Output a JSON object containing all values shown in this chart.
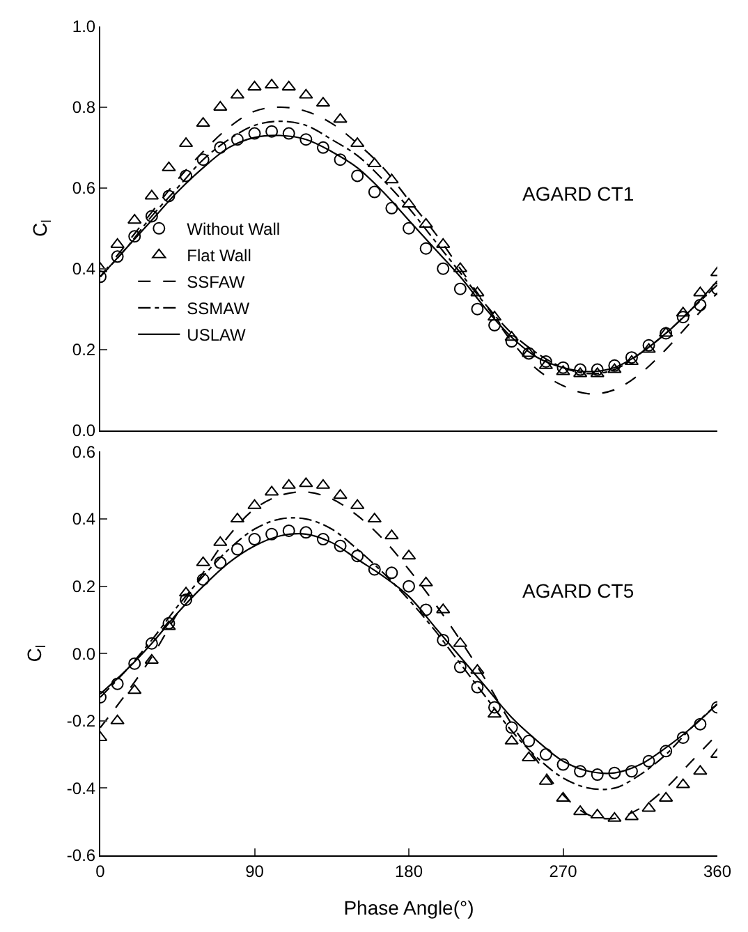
{
  "chart_data": [
    {
      "type": "line",
      "ylabel": "C$_{l}$",
      "annotations": [
        "AGARD CT1"
      ],
      "xlim": [
        0,
        360
      ],
      "ylim": [
        0,
        1.0
      ],
      "yticks": [
        {
          "value": 0,
          "label": "0.0"
        },
        0.2,
        0.4,
        0.6,
        0.8,
        {
          "value": 1,
          "label": "1.0"
        }
      ],
      "tick_labels": "y",
      "legend": "left",
      "series": [
        {
          "name": "Without Wall",
          "type": "scatter",
          "marker": "circle",
          "color": "#000000",
          "x": [
            0,
            10,
            20,
            30,
            40,
            50,
            60,
            70,
            80,
            90,
            100,
            110,
            120,
            130,
            140,
            150,
            160,
            170,
            180,
            190,
            200,
            210,
            220,
            230,
            240,
            250,
            260,
            270,
            280,
            290,
            300,
            310,
            320,
            330,
            340,
            350,
            360
          ],
          "values": [
            0.38,
            0.43,
            0.48,
            0.53,
            0.58,
            0.63,
            0.67,
            0.7,
            0.72,
            0.735,
            0.74,
            0.735,
            0.72,
            0.7,
            0.67,
            0.63,
            0.59,
            0.55,
            0.5,
            0.45,
            0.4,
            0.35,
            0.3,
            0.26,
            0.22,
            0.19,
            0.17,
            0.155,
            0.15,
            0.15,
            0.16,
            0.18,
            0.21,
            0.24,
            0.28,
            0.31,
            0.35
          ]
        },
        {
          "name": "Flat Wall",
          "type": "scatter",
          "marker": "triangle",
          "color": "#000000",
          "x": [
            0,
            10,
            20,
            30,
            40,
            50,
            60,
            70,
            80,
            90,
            100,
            110,
            120,
            130,
            140,
            150,
            160,
            170,
            180,
            190,
            200,
            210,
            220,
            230,
            240,
            250,
            260,
            270,
            280,
            290,
            300,
            310,
            320,
            330,
            340,
            350,
            360
          ],
          "values": [
            0.4,
            0.46,
            0.52,
            0.58,
            0.65,
            0.71,
            0.76,
            0.8,
            0.83,
            0.85,
            0.855,
            0.85,
            0.83,
            0.81,
            0.77,
            0.71,
            0.66,
            0.62,
            0.56,
            0.51,
            0.46,
            0.4,
            0.34,
            0.28,
            0.23,
            0.19,
            0.16,
            0.145,
            0.14,
            0.14,
            0.15,
            0.17,
            0.2,
            0.24,
            0.29,
            0.34,
            0.39
          ]
        },
        {
          "name": "SSFAW",
          "line_style": "dashed",
          "color": "#000000",
          "x": [
            0,
            15,
            30,
            45,
            60,
            75,
            90,
            105,
            120,
            135,
            150,
            165,
            180,
            195,
            210,
            225,
            240,
            255,
            270,
            285,
            300,
            315,
            330,
            345,
            360
          ],
          "values": [
            0.38,
            0.46,
            0.54,
            0.62,
            0.69,
            0.75,
            0.79,
            0.8,
            0.79,
            0.76,
            0.71,
            0.65,
            0.57,
            0.49,
            0.4,
            0.31,
            0.22,
            0.15,
            0.11,
            0.09,
            0.1,
            0.14,
            0.2,
            0.27,
            0.34
          ]
        },
        {
          "name": "SSMAW",
          "line_style": "dashdot",
          "color": "#000000",
          "x": [
            0,
            15,
            30,
            45,
            60,
            75,
            90,
            105,
            120,
            135,
            150,
            165,
            180,
            195,
            210,
            225,
            240,
            255,
            270,
            285,
            300,
            315,
            330,
            345,
            360
          ],
          "values": [
            0.38,
            0.45,
            0.53,
            0.6,
            0.67,
            0.72,
            0.755,
            0.765,
            0.755,
            0.72,
            0.68,
            0.62,
            0.55,
            0.47,
            0.39,
            0.31,
            0.24,
            0.19,
            0.155,
            0.14,
            0.15,
            0.19,
            0.24,
            0.3,
            0.36
          ]
        },
        {
          "name": "USLAW",
          "line_style": "solid",
          "color": "#000000",
          "x": [
            0,
            15,
            30,
            45,
            60,
            75,
            90,
            105,
            120,
            135,
            150,
            165,
            180,
            195,
            210,
            225,
            240,
            255,
            270,
            285,
            300,
            315,
            330,
            345,
            360
          ],
          "values": [
            0.38,
            0.45,
            0.52,
            0.59,
            0.65,
            0.7,
            0.725,
            0.73,
            0.72,
            0.69,
            0.65,
            0.59,
            0.52,
            0.45,
            0.38,
            0.3,
            0.23,
            0.18,
            0.155,
            0.145,
            0.155,
            0.19,
            0.24,
            0.3,
            0.37
          ]
        }
      ]
    },
    {
      "type": "line",
      "ylabel": "C$_{l}$",
      "xlabel": "Phase Angle(°)",
      "annotations": [
        "AGARD CT5"
      ],
      "xlim": [
        0,
        360
      ],
      "xticks": [
        0,
        90,
        180,
        270,
        360
      ],
      "ylim": [
        -0.6,
        0.6
      ],
      "yticks": [
        {
          "value": -0.6,
          "label": "-0.6"
        },
        -0.4,
        -0.2,
        {
          "value": 0,
          "label": "0.0"
        },
        0.2,
        0.4,
        0.6
      ],
      "series": [
        {
          "type": "scatter",
          "marker": "circle",
          "color": "#000000",
          "x": [
            0,
            10,
            20,
            30,
            40,
            50,
            60,
            70,
            80,
            90,
            100,
            110,
            120,
            130,
            140,
            150,
            160,
            170,
            180,
            190,
            200,
            210,
            220,
            230,
            240,
            250,
            260,
            270,
            280,
            290,
            300,
            310,
            320,
            330,
            340,
            350,
            360
          ],
          "values": [
            -0.13,
            -0.09,
            -0.03,
            0.03,
            0.09,
            0.16,
            0.22,
            0.27,
            0.31,
            0.34,
            0.355,
            0.365,
            0.36,
            0.34,
            0.32,
            0.29,
            0.25,
            0.24,
            0.2,
            0.13,
            0.04,
            -0.04,
            -0.1,
            -0.16,
            -0.22,
            -0.26,
            -0.3,
            -0.33,
            -0.35,
            -0.36,
            -0.355,
            -0.35,
            -0.32,
            -0.29,
            -0.25,
            -0.21,
            -0.16
          ]
        },
        {
          "type": "scatter",
          "marker": "triangle",
          "color": "#000000",
          "x": [
            0,
            10,
            20,
            30,
            40,
            50,
            60,
            70,
            80,
            90,
            100,
            110,
            120,
            130,
            140,
            150,
            160,
            170,
            180,
            190,
            200,
            210,
            220,
            230,
            240,
            250,
            260,
            270,
            280,
            290,
            300,
            310,
            320,
            330,
            340,
            350,
            360
          ],
          "values": [
            -0.25,
            -0.2,
            -0.11,
            -0.02,
            0.08,
            0.18,
            0.27,
            0.33,
            0.4,
            0.44,
            0.48,
            0.5,
            0.505,
            0.5,
            0.47,
            0.44,
            0.4,
            0.35,
            0.29,
            0.21,
            0.13,
            0.03,
            -0.05,
            -0.18,
            -0.26,
            -0.31,
            -0.38,
            -0.43,
            -0.47,
            -0.48,
            -0.49,
            -0.485,
            -0.46,
            -0.43,
            -0.39,
            -0.35,
            -0.3
          ]
        },
        {
          "line_style": "dashed",
          "color": "#000000",
          "x": [
            0,
            15,
            30,
            45,
            60,
            75,
            90,
            105,
            120,
            135,
            150,
            165,
            180,
            195,
            210,
            225,
            240,
            255,
            270,
            285,
            300,
            315,
            330,
            345,
            360
          ],
          "values": [
            -0.22,
            -0.12,
            -0.01,
            0.12,
            0.24,
            0.35,
            0.43,
            0.47,
            0.48,
            0.46,
            0.41,
            0.34,
            0.25,
            0.15,
            0.04,
            -0.08,
            -0.21,
            -0.32,
            -0.42,
            -0.48,
            -0.49,
            -0.46,
            -0.4,
            -0.32,
            -0.24
          ]
        },
        {
          "line_style": "dashdot",
          "color": "#000000",
          "x": [
            0,
            15,
            30,
            45,
            60,
            75,
            90,
            105,
            120,
            135,
            150,
            165,
            180,
            195,
            210,
            225,
            240,
            255,
            270,
            285,
            300,
            315,
            330,
            345,
            360
          ],
          "values": [
            -0.13,
            -0.05,
            0.04,
            0.14,
            0.23,
            0.31,
            0.37,
            0.4,
            0.4,
            0.37,
            0.31,
            0.24,
            0.16,
            0.07,
            -0.03,
            -0.13,
            -0.23,
            -0.31,
            -0.37,
            -0.4,
            -0.4,
            -0.36,
            -0.3,
            -0.22,
            -0.15
          ]
        },
        {
          "line_style": "solid",
          "color": "#000000",
          "x": [
            0,
            15,
            30,
            45,
            60,
            75,
            90,
            105,
            120,
            135,
            150,
            165,
            180,
            195,
            210,
            225,
            240,
            255,
            270,
            285,
            300,
            315,
            330,
            345,
            360
          ],
          "values": [
            -0.12,
            -0.05,
            0.03,
            0.12,
            0.2,
            0.27,
            0.32,
            0.35,
            0.355,
            0.33,
            0.28,
            0.23,
            0.17,
            0.08,
            -0.01,
            -0.1,
            -0.19,
            -0.26,
            -0.32,
            -0.35,
            -0.355,
            -0.33,
            -0.28,
            -0.22,
            -0.15
          ]
        }
      ]
    }
  ]
}
